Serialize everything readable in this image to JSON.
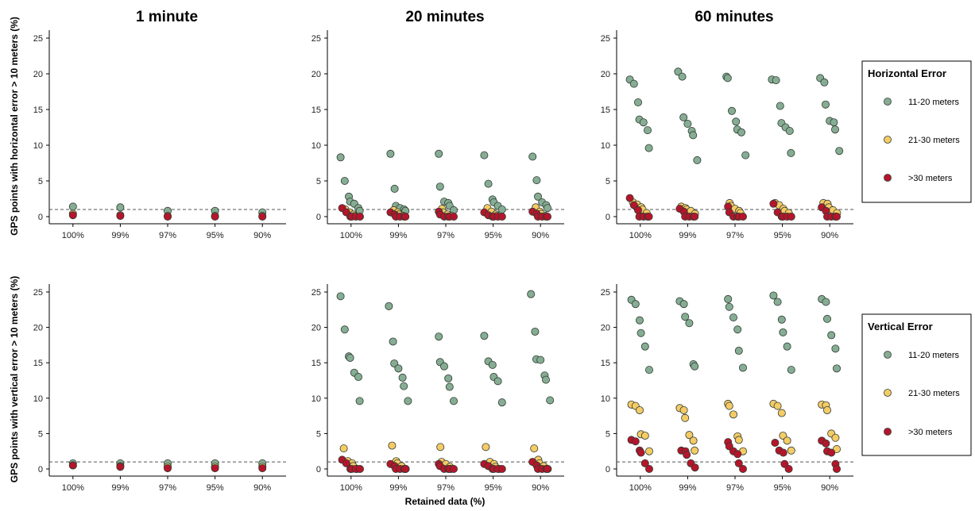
{
  "figure": {
    "column_titles": [
      "1 minute",
      "20 minutes",
      "60 minutes"
    ],
    "row_ylabels": [
      "GPS points with horizontal error > 10 meters (%)",
      "GPS points with vertical error > 10 meters (%)"
    ],
    "xlabel": "Retained data (%)",
    "legends": [
      {
        "title": "Horizontal Error",
        "items": [
          "11-20 meters",
          "21-30 meters",
          ">30 meters"
        ]
      },
      {
        "title": "Vertical Error",
        "items": [
          "11-20 meters",
          "21-30 meters",
          ">30 meters"
        ]
      }
    ],
    "colors": {
      "11-20 meters": "#86ad93",
      "21-30 meters": "#f5cb66",
      ">30 meters": "#b5152b"
    }
  },
  "chart_data": [
    {
      "type": "scatter",
      "title": "1 minute",
      "row": "Horizontal Error",
      "categories": [
        "100%",
        "99%",
        "97%",
        "95%",
        "90%"
      ],
      "ylabel": "GPS points with horizontal error > 10 meters (%)",
      "xlabel": "",
      "ylim": [
        0,
        25
      ],
      "yticks": [
        0,
        5,
        10,
        15,
        20,
        25
      ],
      "reference_line": 1,
      "series": [
        {
          "name": "11-20 meters",
          "values": [
            [
              1.4
            ],
            [
              1.3
            ],
            [
              0.8
            ],
            [
              0.8
            ],
            [
              0.6
            ]
          ]
        },
        {
          "name": "21-30 meters",
          "values": [
            [
              0.4
            ],
            [
              0.2
            ],
            [
              0.1
            ],
            [
              0.1
            ],
            [
              0.1
            ]
          ]
        },
        {
          "name": ">30 meters",
          "values": [
            [
              0.2
            ],
            [
              0.1
            ],
            [
              0.0
            ],
            [
              0.0
            ],
            [
              0.0
            ]
          ]
        }
      ]
    },
    {
      "type": "scatter",
      "title": "20 minutes",
      "row": "Horizontal Error",
      "categories": [
        "100%",
        "99%",
        "97%",
        "95%",
        "90%"
      ],
      "ylabel": "",
      "xlabel": "",
      "ylim": [
        0,
        25
      ],
      "yticks": [
        0,
        5,
        10,
        15,
        20,
        25
      ],
      "reference_line": 1,
      "series": [
        {
          "name": "11-20 meters",
          "values": [
            [
              8.3,
              5.0,
              2.8,
              2.1,
              1.8,
              1.2,
              0.8
            ],
            [
              8.8,
              3.9,
              1.5,
              1.2,
              1.0,
              0.8
            ],
            [
              8.8,
              4.2,
              2.1,
              1.9,
              1.5,
              0.9
            ],
            [
              8.6,
              4.6,
              2.4,
              2.0,
              1.5,
              1.0
            ],
            [
              8.4,
              5.1,
              2.8,
              2.0,
              1.6,
              1.2
            ]
          ]
        },
        {
          "name": "21-30 meters",
          "values": [
            [
              1.0,
              0.6,
              0.3,
              0.1
            ],
            [
              0.9,
              0.6,
              0.3,
              0.1
            ],
            [
              1.1,
              0.6,
              0.3,
              0.1
            ],
            [
              1.2,
              0.7,
              0.3,
              0.1
            ],
            [
              1.3,
              0.7,
              0.4,
              0.1
            ]
          ]
        },
        {
          "name": ">30 meters",
          "values": [
            [
              1.2,
              0.6,
              0.0,
              0.0,
              0.0,
              0.0
            ],
            [
              0.6,
              0.3,
              0.0,
              0.0,
              0.0,
              0.0
            ],
            [
              0.7,
              0.3,
              0.0,
              0.0,
              0.0,
              0.0
            ],
            [
              0.6,
              0.2,
              0.0,
              0.0,
              0.0,
              0.0
            ],
            [
              0.7,
              0.4,
              0.0,
              0.0,
              0.0,
              0.0
            ]
          ]
        }
      ]
    },
    {
      "type": "scatter",
      "title": "60 minutes",
      "row": "Horizontal Error",
      "categories": [
        "100%",
        "99%",
        "97%",
        "95%",
        "90%"
      ],
      "ylabel": "",
      "xlabel": "",
      "ylim": [
        0,
        25
      ],
      "yticks": [
        0,
        5,
        10,
        15,
        20,
        25
      ],
      "reference_line": 1,
      "series": [
        {
          "name": "11-20 meters",
          "values": [
            [
              19.2,
              18.6,
              16.0,
              13.6,
              13.2,
              12.1,
              9.6
            ],
            [
              20.3,
              19.6,
              13.9,
              13.0,
              12.0,
              11.4,
              7.9
            ],
            [
              19.6,
              19.4,
              14.8,
              13.3,
              12.2,
              11.8,
              8.6
            ],
            [
              19.2,
              19.1,
              15.5,
              13.1,
              12.5,
              12.0,
              8.9
            ],
            [
              19.4,
              18.8,
              15.7,
              13.4,
              13.2,
              12.2,
              9.2
            ]
          ]
        },
        {
          "name": "21-30 meters",
          "values": [
            [
              2.0,
              1.7,
              1.3,
              1.0,
              0.5
            ],
            [
              1.4,
              1.2,
              1.0,
              0.8,
              0.4
            ],
            [
              1.9,
              1.5,
              1.1,
              0.8,
              0.5
            ],
            [
              1.9,
              1.6,
              1.1,
              0.8,
              0.5
            ],
            [
              1.9,
              1.8,
              1.3,
              0.9,
              0.5
            ]
          ]
        },
        {
          "name": ">30 meters",
          "values": [
            [
              2.6,
              1.6,
              0.9,
              0.0,
              0.0,
              0.0,
              0.0
            ],
            [
              1.1,
              0.7,
              0.0,
              0.0,
              0.0,
              0.0
            ],
            [
              1.4,
              0.6,
              0.0,
              0.0,
              0.0,
              0.0
            ],
            [
              1.8,
              0.6,
              0.0,
              0.0,
              0.0,
              0.0
            ],
            [
              1.3,
              0.8,
              0.0,
              0.0,
              0.0,
              0.0
            ]
          ]
        }
      ]
    },
    {
      "type": "scatter",
      "title": "1 minute",
      "row": "Vertical Error",
      "categories": [
        "100%",
        "99%",
        "97%",
        "95%",
        "90%"
      ],
      "ylabel": "GPS points with vertical error > 10 meters (%)",
      "xlabel": "",
      "ylim": [
        0,
        25
      ],
      "yticks": [
        0,
        5,
        10,
        15,
        20,
        25
      ],
      "reference_line": 1,
      "series": [
        {
          "name": "11-20 meters",
          "values": [
            [
              0.8
            ],
            [
              0.8
            ],
            [
              0.8
            ],
            [
              0.8
            ],
            [
              0.8
            ]
          ]
        },
        {
          "name": "21-30 meters",
          "values": [
            [
              0.5
            ],
            [
              0.4
            ],
            [
              0.3
            ],
            [
              0.3
            ],
            [
              0.3
            ]
          ]
        },
        {
          "name": ">30 meters",
          "values": [
            [
              0.5
            ],
            [
              0.3
            ],
            [
              0.1
            ],
            [
              0.1
            ],
            [
              0.1
            ]
          ]
        }
      ]
    },
    {
      "type": "scatter",
      "title": "20 minutes",
      "row": "Vertical Error",
      "categories": [
        "100%",
        "99%",
        "97%",
        "95%",
        "90%"
      ],
      "ylabel": "",
      "xlabel": "Retained data (%)",
      "ylim": [
        0,
        25
      ],
      "yticks": [
        0,
        5,
        10,
        15,
        20,
        25
      ],
      "reference_line": 1,
      "series": [
        {
          "name": "11-20 meters",
          "values": [
            [
              24.4,
              19.7,
              15.9,
              15.7,
              13.6,
              13.0,
              9.6
            ],
            [
              23.0,
              18.0,
              14.9,
              14.2,
              12.9,
              11.7,
              9.6
            ],
            [
              18.7,
              15.1,
              14.5,
              12.8,
              11.6,
              9.6
            ],
            [
              18.8,
              15.2,
              14.7,
              13.0,
              12.4,
              9.4
            ],
            [
              24.7,
              19.4,
              15.5,
              15.4,
              13.2,
              12.6,
              9.7
            ]
          ]
        },
        {
          "name": "21-30 meters",
          "values": [
            [
              2.9,
              1.1,
              0.8,
              0.4,
              0.0
            ],
            [
              3.3,
              1.1,
              0.8,
              0.4,
              0.0
            ],
            [
              3.1,
              1.0,
              0.7,
              0.3,
              0.0
            ],
            [
              3.1,
              1.0,
              0.7,
              0.3,
              0.0
            ],
            [
              2.9,
              1.3,
              0.8,
              0.4,
              0.0
            ]
          ]
        },
        {
          "name": ">30 meters",
          "values": [
            [
              1.3,
              0.8,
              0.0,
              0.0,
              0.0,
              0.0
            ],
            [
              0.7,
              0.4,
              0.0,
              0.0,
              0.0,
              0.0
            ],
            [
              0.7,
              0.4,
              0.0,
              0.0,
              0.0,
              0.0
            ],
            [
              0.7,
              0.4,
              0.0,
              0.0,
              0.0,
              0.0
            ],
            [
              1.0,
              0.5,
              0.0,
              0.0,
              0.0,
              0.0
            ]
          ]
        }
      ]
    },
    {
      "type": "scatter",
      "title": "60 minutes",
      "row": "Vertical Error",
      "categories": [
        "100%",
        "99%",
        "97%",
        "95%",
        "90%"
      ],
      "ylabel": "",
      "xlabel": "",
      "ylim": [
        0,
        25
      ],
      "yticks": [
        0,
        5,
        10,
        15,
        20,
        25
      ],
      "reference_line": 1,
      "series": [
        {
          "name": "11-20 meters",
          "values": [
            [
              23.9,
              23.3,
              21.0,
              19.2,
              17.3,
              14.0
            ],
            [
              23.7,
              23.3,
              21.5,
              20.6,
              14.8,
              14.5
            ],
            [
              24.0,
              22.9,
              21.4,
              19.7,
              16.7,
              14.3
            ],
            [
              24.5,
              23.6,
              21.1,
              19.3,
              17.3,
              14.0
            ],
            [
              24.0,
              23.6,
              21.2,
              18.9,
              17.0,
              14.2
            ]
          ]
        },
        {
          "name": "21-30 meters",
          "values": [
            [
              9.1,
              8.9,
              8.3,
              4.9,
              4.7,
              2.5
            ],
            [
              8.6,
              8.3,
              7.2,
              4.8,
              4.0,
              2.6
            ],
            [
              9.2,
              8.9,
              7.7,
              4.6,
              4.1,
              2.5
            ],
            [
              9.2,
              8.9,
              7.9,
              4.7,
              4.0,
              2.6
            ],
            [
              9.1,
              9.0,
              8.3,
              5.0,
              4.4,
              2.8
            ]
          ]
        },
        {
          "name": ">30 meters",
          "values": [
            [
              4.1,
              3.9,
              2.6,
              2.3,
              0.8,
              0.0
            ],
            [
              2.6,
              2.5,
              2.0,
              0.8,
              0.2
            ],
            [
              3.8,
              3.2,
              2.5,
              2.1,
              0.8,
              0.0
            ],
            [
              3.7,
              2.6,
              2.3,
              0.7,
              0.0
            ],
            [
              4.0,
              3.6,
              2.5,
              2.3,
              0.7,
              0.0
            ]
          ]
        }
      ]
    }
  ]
}
